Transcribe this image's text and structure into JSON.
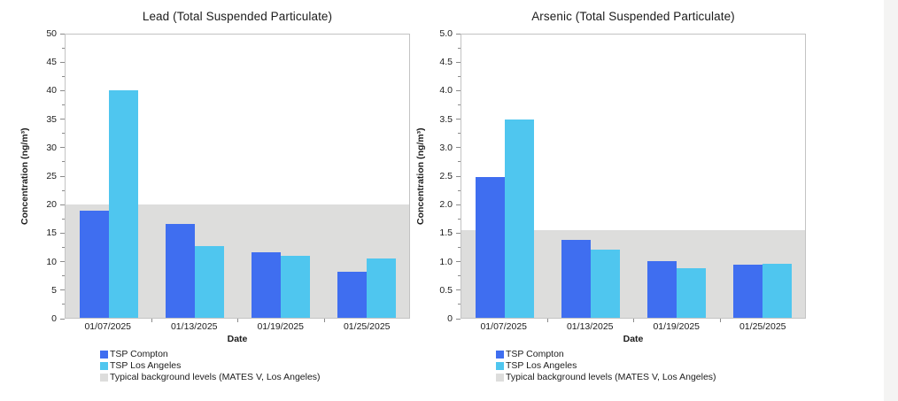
{
  "page": {
    "background": "#ffffff",
    "side_strip_color": "#f4f4f3"
  },
  "colors": {
    "compton": "#3f6ef0",
    "los_angeles": "#4fc6ef",
    "band": "#dddddc",
    "frame": "#c3c3c3",
    "tick": "#8a8a8a",
    "text": "#1c1c1c"
  },
  "legend": {
    "items": [
      {
        "label": "TSP Compton",
        "color_key": "compton"
      },
      {
        "label": "TSP Los Angeles",
        "color_key": "los_angeles"
      },
      {
        "label": "Typical background levels (MATES V, Los Angeles)",
        "color_key": "band"
      }
    ]
  },
  "chart_data": [
    {
      "type": "bar",
      "title": "Lead (Total Suspended Particulate)",
      "xlabel": "Date",
      "ylabel": "Concentration (ng/m³)",
      "categories": [
        "01/07/2025",
        "01/13/2025",
        "01/19/2025",
        "01/25/2025"
      ],
      "series": [
        {
          "name": "TSP Compton",
          "color_key": "compton",
          "values": [
            18.9,
            16.6,
            11.5,
            8.1
          ]
        },
        {
          "name": "TSP Los Angeles",
          "color_key": "los_angeles",
          "values": [
            40.2,
            12.6,
            10.9,
            10.4
          ]
        }
      ],
      "band": {
        "label": "Typical background levels (MATES V, Los Angeles)",
        "color_key": "band",
        "from": 0,
        "to": 20
      },
      "ylim": [
        0,
        50
      ],
      "ytick_step": 5,
      "ytick_labels": [
        "0",
        "5",
        "10",
        "15",
        "20",
        "25",
        "30",
        "35",
        "40",
        "45",
        "50"
      ],
      "grid": false,
      "legend_position": "bottom-left"
    },
    {
      "type": "bar",
      "title": "Arsenic (Total Suspended Particulate)",
      "xlabel": "Date",
      "ylabel": "Concentration (ng/m³)",
      "categories": [
        "01/07/2025",
        "01/13/2025",
        "01/19/2025",
        "01/25/2025"
      ],
      "series": [
        {
          "name": "TSP Compton",
          "color_key": "compton",
          "values": [
            2.48,
            1.37,
            1.0,
            0.93
          ]
        },
        {
          "name": "TSP Los Angeles",
          "color_key": "los_angeles",
          "values": [
            3.5,
            1.21,
            0.87,
            0.96
          ]
        }
      ],
      "band": {
        "label": "Typical background levels (MATES V, Los Angeles)",
        "color_key": "band",
        "from": 0,
        "to": 1.55
      },
      "ylim": [
        0,
        5
      ],
      "ytick_step": 0.5,
      "ytick_labels": [
        "0",
        "0.5",
        "1.0",
        "1.5",
        "2.0",
        "2.5",
        "3.0",
        "3.5",
        "4.0",
        "4.5",
        "5.0"
      ],
      "grid": false,
      "legend_position": "bottom-left"
    }
  ]
}
